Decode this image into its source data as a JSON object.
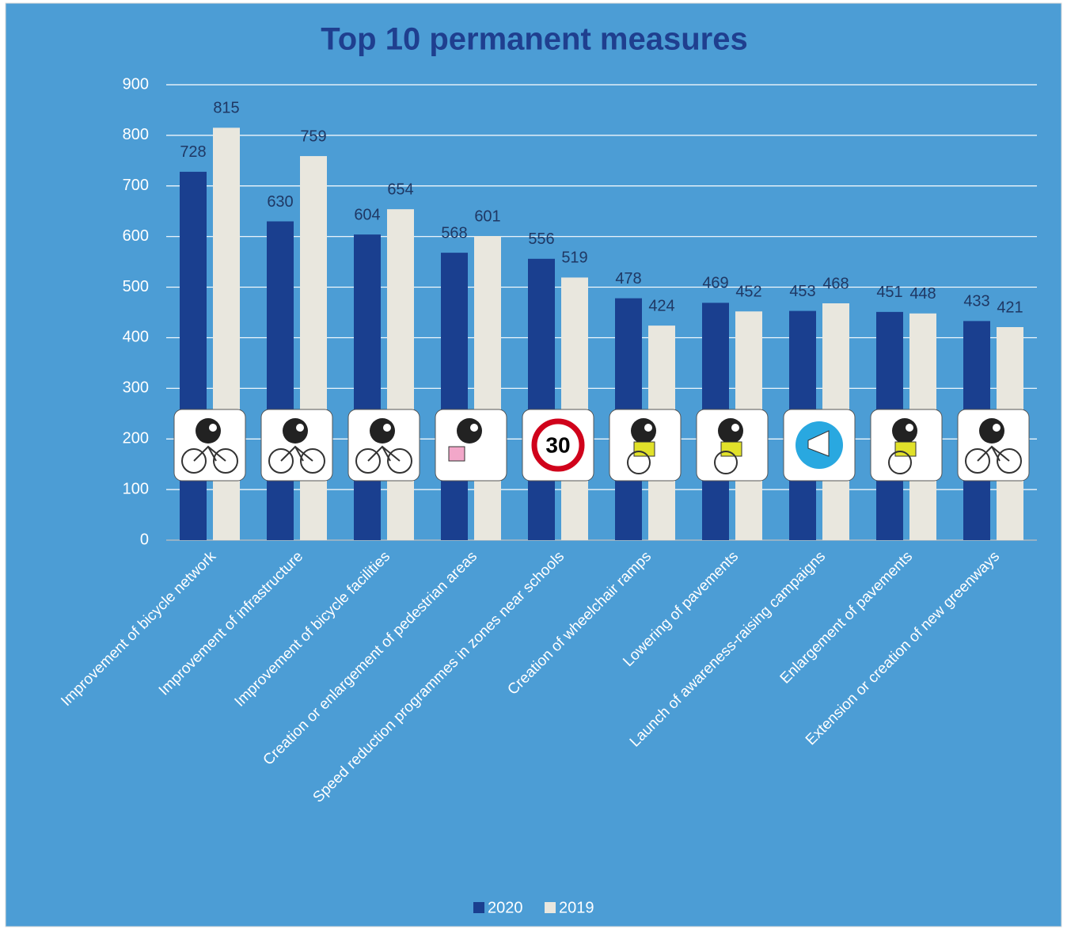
{
  "chart_data": {
    "type": "bar",
    "title": "Top 10 permanent measures",
    "categories": [
      "Improvement of bicycle network",
      "Improvement of infrastructure",
      "Improvement of bicycle facilities",
      "Creation or enlargement of pedestrian areas",
      "Speed reduction programmes in zones near schools",
      "Creation of wheelchair ramps",
      "Lowering of pavements",
      "Launch of awareness-raising campaigns",
      "Enlargement of pavements",
      "Extension or creation of new greenways"
    ],
    "series": [
      {
        "name": "2020",
        "color": "#1a3f8f",
        "values": [
          728,
          630,
          604,
          568,
          556,
          478,
          469,
          453,
          451,
          433
        ]
      },
      {
        "name": "2019",
        "color": "#e9e7de",
        "values": [
          815,
          759,
          654,
          601,
          519,
          424,
          452,
          468,
          448,
          421
        ]
      }
    ],
    "ylim": [
      0,
      900
    ],
    "yticks": [
      0,
      100,
      200,
      300,
      400,
      500,
      600,
      700,
      800,
      900
    ],
    "grid": true,
    "legend": "bottom",
    "annotations": [
      "30"
    ]
  }
}
